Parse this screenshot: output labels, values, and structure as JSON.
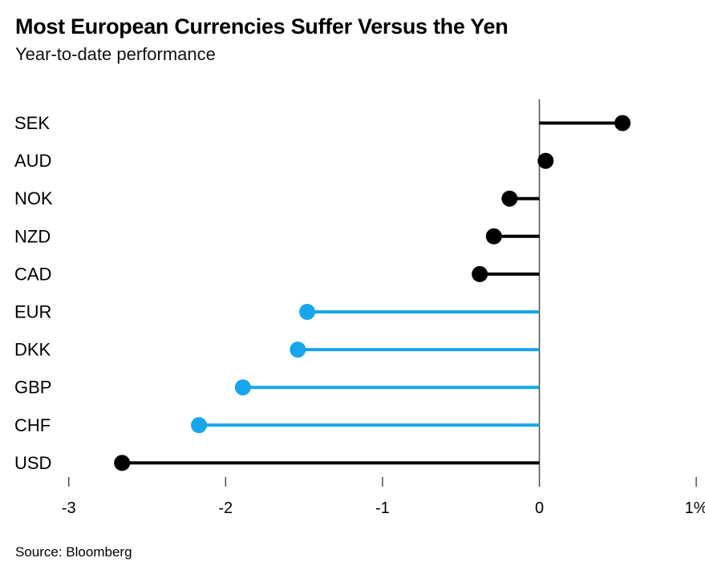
{
  "header": {
    "title": "Most European Currencies Suffer Versus the Yen",
    "subtitle": "Year-to-date performance"
  },
  "chart_data": {
    "type": "bar",
    "variant": "lollipop",
    "orientation": "horizontal",
    "title": "Most European Currencies Suffer Versus the Yen",
    "subtitle": "Year-to-date performance",
    "categories": [
      "SEK",
      "AUD",
      "NOK",
      "NZD",
      "CAD",
      "EUR",
      "DKK",
      "GBP",
      "CHF",
      "USD"
    ],
    "values": [
      0.53,
      0.04,
      -0.19,
      -0.29,
      -0.38,
      -1.48,
      -1.54,
      -1.89,
      -2.17,
      -2.66
    ],
    "point_colors": [
      "black",
      "black",
      "black",
      "black",
      "black",
      "blue",
      "blue",
      "blue",
      "blue",
      "black"
    ],
    "palette": {
      "black": "#000000",
      "blue": "#18a5ec",
      "axis": "#4d4d4d",
      "text": "#000000"
    },
    "xlabel": "",
    "ylabel": "",
    "unit": "%",
    "xlim": [
      -3,
      1
    ],
    "xticks": [
      -3,
      -2,
      -1,
      0,
      1
    ],
    "xtick_labels": [
      "-3",
      "-2",
      "-1",
      "0",
      "1%"
    ],
    "grid": false,
    "legend": false,
    "zero_baseline": true
  },
  "footer": {
    "source": "Source: Bloomberg"
  }
}
